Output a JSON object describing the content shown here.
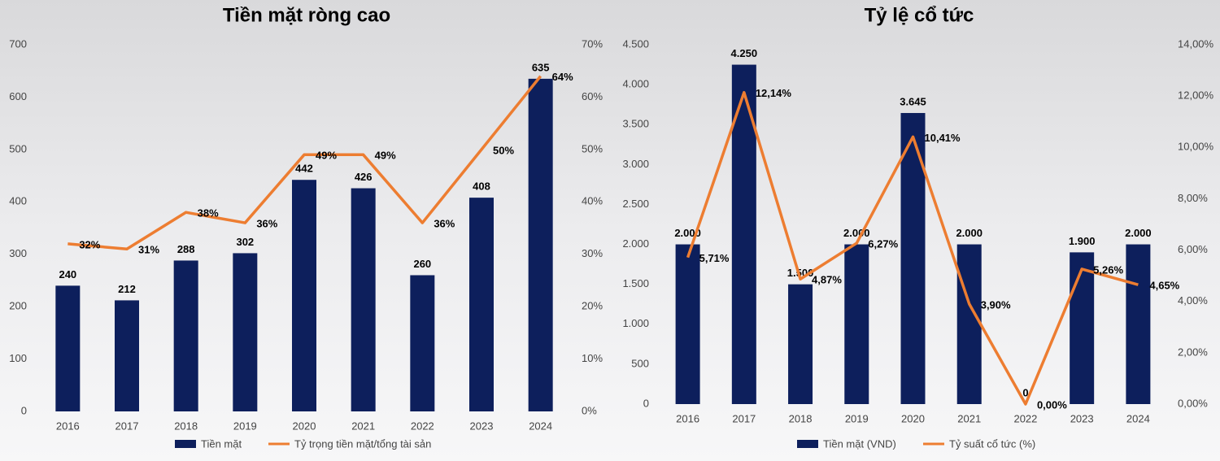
{
  "chart_data": [
    {
      "type": "bar-line",
      "title": "Tiền mặt ròng cao",
      "categories": [
        "2016",
        "2017",
        "2018",
        "2019",
        "2020",
        "2021",
        "2022",
        "2023",
        "2024"
      ],
      "series": [
        {
          "name": "Tiền mặt",
          "color": "#0d1f5c",
          "values": [
            240,
            212,
            288,
            302,
            442,
            426,
            260,
            408,
            635
          ]
        },
        {
          "name": "Tỷ trọng tiền mặt/tổng tài sản",
          "color": "#ed7d31",
          "axis": "y2",
          "values": [
            32,
            31,
            38,
            36,
            49,
            49,
            36,
            50,
            64
          ],
          "value_labels": [
            "32%",
            "31%",
            "38%",
            "36%",
            "49%",
            "49%",
            "36%",
            "50%",
            "64%"
          ]
        }
      ],
      "ylim": [
        0,
        700
      ],
      "yticks": [
        0,
        100,
        200,
        300,
        400,
        500,
        600,
        700
      ],
      "y2lim": [
        0,
        70
      ],
      "y2ticks": [
        {
          "value": 0,
          "label": "0%"
        },
        {
          "value": 10,
          "label": "10%"
        },
        {
          "value": 20,
          "label": "20%"
        },
        {
          "value": 30,
          "label": "30%"
        },
        {
          "value": 40,
          "label": "40%"
        },
        {
          "value": 50,
          "label": "50%"
        },
        {
          "value": 60,
          "label": "60%"
        },
        {
          "value": 70,
          "label": "70%"
        }
      ]
    },
    {
      "type": "bar-line",
      "title": "Tỷ lệ cổ tức",
      "categories": [
        "2016",
        "2017",
        "2018",
        "2019",
        "2020",
        "2021",
        "2022",
        "2023",
        "2024"
      ],
      "series": [
        {
          "name": "Tiền mặt (VND)",
          "color": "#0d1f5c",
          "values": [
            2000,
            4250,
            1500,
            2000,
            3645,
            2000,
            0,
            1900,
            2000
          ],
          "value_labels": [
            "2.000",
            "4.250",
            "1.500",
            "2.000",
            "3.645",
            "2.000",
            "0",
            "1.900",
            "2.000"
          ]
        },
        {
          "name": "Tỷ suất cổ tức (%)",
          "color": "#ed7d31",
          "axis": "y2",
          "values": [
            5.71,
            12.14,
            4.87,
            6.27,
            10.41,
            3.9,
            0.0,
            5.26,
            4.65
          ],
          "value_labels": [
            "5,71%",
            "12,14%",
            "4,87%",
            "6,27%",
            "10,41%",
            "3,90%",
            "0,00%",
            "5,26%",
            "4,65%"
          ]
        }
      ],
      "ylim": [
        0,
        4500
      ],
      "yticks": [
        0,
        500,
        {
          "value": 1000,
          "label": "1.000"
        },
        {
          "value": 1500,
          "label": "1.500"
        },
        {
          "value": 2000,
          "label": "2.000"
        },
        {
          "value": 2500,
          "label": "2.500"
        },
        {
          "value": 3000,
          "label": "3.000"
        },
        {
          "value": 3500,
          "label": "3.500"
        },
        {
          "value": 4000,
          "label": "4.000"
        },
        {
          "value": 4500,
          "label": "4.500"
        }
      ],
      "y2lim": [
        0,
        14
      ],
      "y2ticks": [
        {
          "value": 0,
          "label": "0,00%"
        },
        {
          "value": 2,
          "label": "2,00%"
        },
        {
          "value": 4,
          "label": "4,00%"
        },
        {
          "value": 6,
          "label": "6,00%"
        },
        {
          "value": 8,
          "label": "8,00%"
        },
        {
          "value": 10,
          "label": "10,00%"
        },
        {
          "value": 12,
          "label": "12,00%"
        },
        {
          "value": 14,
          "label": "14,00%"
        }
      ]
    }
  ]
}
